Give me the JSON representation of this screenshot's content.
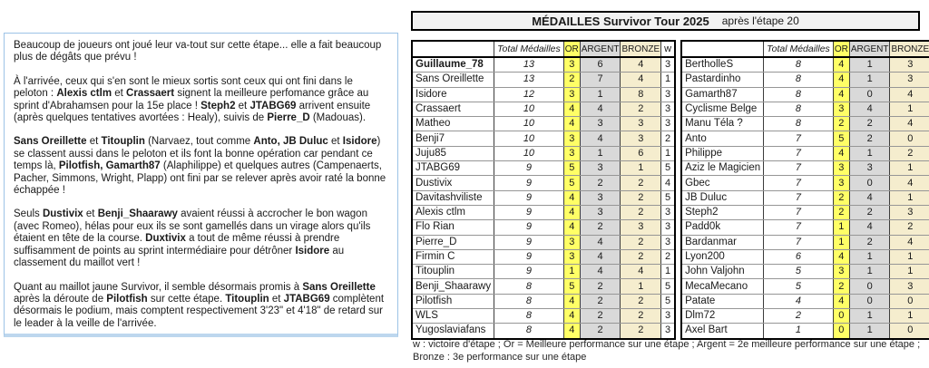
{
  "colors": {
    "or_column": "#FFFF66",
    "argent_column": "#D9D9D9",
    "bronze_column": "#F5EDCE",
    "title_bg": "#F2F2F2",
    "panel_border": "#9DC3E6",
    "panel_shadow": "#BDD7EE"
  },
  "title": {
    "main": "MÉDAILLES Survivor Tour 2025",
    "sub": "après l'étape 20"
  },
  "left_panel": {
    "paragraphs": [
      [
        {
          "t": "Beaucoup de joueurs ont joué leur va-tout sur cette étape... elle a fait beaucoup plus de dégâts que prévu !"
        }
      ],
      [
        {
          "t": "À l'arrivée, ceux qui s'en sont le mieux sortis sont ceux qui ont fini dans le peloton : "
        },
        {
          "t": "Alexis ctlm",
          "b": 1
        },
        {
          "t": " et "
        },
        {
          "t": "Crassaert",
          "b": 1
        },
        {
          "t": " signent la meilleure perfomance grâce au sprint d'Abrahamsen pour la 15e place ! "
        },
        {
          "t": "Steph2",
          "b": 1
        },
        {
          "t": " et "
        },
        {
          "t": "JTABG69",
          "b": 1
        },
        {
          "t": " arrivent ensuite (après quelques tentatives avortées : Healy), suivis de "
        },
        {
          "t": "Pierre_D",
          "b": 1
        },
        {
          "t": " (Madouas)."
        }
      ],
      [
        {
          "t": "Sans Oreillette",
          "b": 1
        },
        {
          "t": " et "
        },
        {
          "t": "Titouplin",
          "b": 1
        },
        {
          "t": " (Narvaez, tout comme "
        },
        {
          "t": "Anto, JB Duluc",
          "b": 1
        },
        {
          "t": " et "
        },
        {
          "t": "Isidore",
          "b": 1
        },
        {
          "t": ") se classent aussi dans le peloton et ils font la bonne opération car pendant ce temps là, "
        },
        {
          "t": "Pilotfish, Gamarth87",
          "b": 1
        },
        {
          "t": " (Alaphilippe) et quelques autres (Campenaerts, Pacher, Simmons, Wright, Plapp) ont fini par se relever après avoir raté la bonne échappée !"
        }
      ],
      [
        {
          "t": "Seuls "
        },
        {
          "t": "Dustivix",
          "b": 1
        },
        {
          "t": " et "
        },
        {
          "t": "Benji_Shaarawy",
          "b": 1
        },
        {
          "t": " avaient réussi à accrocher le bon wagon (avec Romeo), hélas pour eux ils se sont gamellés dans un virage alors qu'ils étaient en tête de la course. "
        },
        {
          "t": "Duxtivix",
          "b": 1
        },
        {
          "t": " a tout de même réussi à prendre suffisamment de points au sprint intermédiaire pour détrôner "
        },
        {
          "t": "Isidore",
          "b": 1
        },
        {
          "t": " au classement du maillot vert !"
        }
      ],
      [
        {
          "t": "Quant au maillot jaune Survivor, il semble désormais promis à "
        },
        {
          "t": "Sans Oreillette",
          "b": 1
        },
        {
          "t": " après la déroute de "
        },
        {
          "t": "Pilotfish",
          "b": 1
        },
        {
          "t": " sur cette étape. "
        },
        {
          "t": "Titouplin",
          "b": 1
        },
        {
          "t": " et "
        },
        {
          "t": "JTABG69",
          "b": 1
        },
        {
          "t": " complètent désormais le podium, mais comptent respectivement 3'23\" et 4'18\" de retard sur le leader à la veille de l'arrivée."
        }
      ]
    ]
  },
  "tables": {
    "headers": [
      "",
      "Total Médailles",
      "OR",
      "ARGENT",
      "BRONZE",
      "w"
    ],
    "left_rows": [
      {
        "name": "Guillaume_78",
        "b": 1,
        "total": 13,
        "or": 3,
        "argent": 6,
        "bronze": 4,
        "w": 3
      },
      {
        "name": "Sans Oreillette",
        "total": 13,
        "or": 2,
        "argent": 7,
        "bronze": 4,
        "w": 1
      },
      {
        "name": "Isidore",
        "total": 12,
        "or": 3,
        "argent": 1,
        "bronze": 8,
        "w": 3
      },
      {
        "name": "Crassaert",
        "total": 10,
        "or": 4,
        "argent": 4,
        "bronze": 2,
        "w": 3
      },
      {
        "name": "Matheo",
        "total": 10,
        "or": 4,
        "argent": 3,
        "bronze": 3,
        "w": 3
      },
      {
        "name": "Benji7",
        "total": 10,
        "or": 3,
        "argent": 4,
        "bronze": 3,
        "w": 2
      },
      {
        "name": "Juju85",
        "total": 10,
        "or": 3,
        "argent": 1,
        "bronze": 6,
        "w": 1
      },
      {
        "name": "JTABG69",
        "total": 9,
        "or": 5,
        "argent": 3,
        "bronze": 1,
        "w": 5
      },
      {
        "name": "Dustivix",
        "total": 9,
        "or": 5,
        "argent": 2,
        "bronze": 2,
        "w": 4
      },
      {
        "name": "Davitashviliste",
        "total": 9,
        "or": 4,
        "argent": 3,
        "bronze": 2,
        "w": 5
      },
      {
        "name": "Alexis ctlm",
        "total": 9,
        "or": 4,
        "argent": 3,
        "bronze": 2,
        "w": 3
      },
      {
        "name": "Flo Rian",
        "total": 9,
        "or": 4,
        "argent": 2,
        "bronze": 3,
        "w": 3
      },
      {
        "name": "Pierre_D",
        "total": 9,
        "or": 3,
        "argent": 4,
        "bronze": 2,
        "w": 3
      },
      {
        "name": "Firmin C",
        "total": 9,
        "or": 3,
        "argent": 4,
        "bronze": 2,
        "w": 2
      },
      {
        "name": "Titouplin",
        "total": 9,
        "or": 1,
        "argent": 4,
        "bronze": 4,
        "w": 1
      },
      {
        "name": "Benji_Shaarawy",
        "total": 8,
        "or": 5,
        "argent": 2,
        "bronze": 1,
        "w": 5
      },
      {
        "name": "Pilotfish",
        "total": 8,
        "or": 4,
        "argent": 2,
        "bronze": 2,
        "w": 5
      },
      {
        "name": "WLS",
        "total": 8,
        "or": 4,
        "argent": 2,
        "bronze": 2,
        "w": 3
      },
      {
        "name": "Yugoslaviafans",
        "total": 8,
        "or": 4,
        "argent": 2,
        "bronze": 2,
        "w": 3
      }
    ],
    "right_rows": [
      {
        "name": "BertholleS",
        "total": 8,
        "or": 4,
        "argent": 1,
        "bronze": 3,
        "w": 4
      },
      {
        "name": "Pastardinho",
        "total": 8,
        "or": 4,
        "argent": 1,
        "bronze": 3,
        "w": 2
      },
      {
        "name": "Gamarth87",
        "total": 8,
        "or": 4,
        "argent": 0,
        "bronze": 4,
        "w": 4
      },
      {
        "name": "Cyclisme Belge",
        "total": 8,
        "or": 3,
        "argent": 4,
        "bronze": 1,
        "w": 2
      },
      {
        "name": "Manu Téla ?",
        "total": 8,
        "or": 2,
        "argent": 2,
        "bronze": 4,
        "w": 2
      },
      {
        "name": "Anto",
        "total": 7,
        "or": 5,
        "argent": 2,
        "bronze": 0,
        "w": 5
      },
      {
        "name": "Philippe",
        "total": 7,
        "or": 4,
        "argent": 1,
        "bronze": 2,
        "w": 2
      },
      {
        "name": "Aziz le Magicien",
        "total": 7,
        "or": 3,
        "argent": 3,
        "bronze": 1,
        "w": 4
      },
      {
        "name": "Gbec",
        "total": 7,
        "or": 3,
        "argent": 0,
        "bronze": 4,
        "w": 3
      },
      {
        "name": "JB Duluc",
        "total": 7,
        "or": 2,
        "argent": 4,
        "bronze": 1,
        "w": 1
      },
      {
        "name": "Steph2",
        "total": 7,
        "or": 2,
        "argent": 2,
        "bronze": 3,
        "w": 1
      },
      {
        "name": "Padd0k",
        "total": 7,
        "or": 1,
        "argent": 4,
        "bronze": 2,
        "w": 2
      },
      {
        "name": "Bardanmar",
        "total": 7,
        "or": 1,
        "argent": 2,
        "bronze": 4,
        "w": 1
      },
      {
        "name": "Lyon200",
        "total": 6,
        "or": 4,
        "argent": 1,
        "bronze": 1,
        "w": 3
      },
      {
        "name": "John Valjohn",
        "total": 5,
        "or": 3,
        "argent": 1,
        "bronze": 1,
        "w": 3
      },
      {
        "name": "MecaMecano",
        "total": 5,
        "or": 2,
        "argent": 0,
        "bronze": 3,
        "w": 1
      },
      {
        "name": "Patate",
        "total": 4,
        "or": 4,
        "argent": 0,
        "bronze": 0,
        "w": 4
      },
      {
        "name": "Dlm72",
        "total": 2,
        "or": 0,
        "argent": 1,
        "bronze": 1,
        "w": 0
      },
      {
        "name": "Axel Bart",
        "total": 1,
        "or": 0,
        "argent": 1,
        "bronze": 0,
        "w": 0
      }
    ]
  },
  "footer": {
    "line1": "w : victoire d'étape ; Or = Meilleure performance sur une étape ; Argent = 2e meilleure performance sur une étape ;",
    "line2": "Bronze : 3e performance sur une étape"
  }
}
